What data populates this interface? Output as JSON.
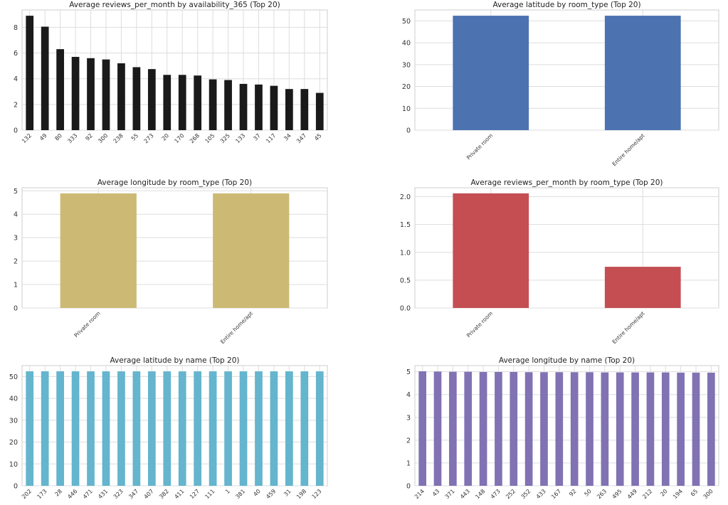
{
  "chart_data": [
    {
      "type": "bar",
      "title": "Average reviews_per_month by availability_365 (Top 20)",
      "color": "#1a1a1a",
      "categories": [
        "132",
        "49",
        "80",
        "333",
        "92",
        "300",
        "238",
        "55",
        "273",
        "20",
        "170",
        "268",
        "105",
        "325",
        "133",
        "37",
        "117",
        "34",
        "347",
        "45"
      ],
      "values": [
        8.9,
        8.05,
        6.3,
        5.7,
        5.6,
        5.5,
        5.2,
        4.9,
        4.75,
        4.3,
        4.3,
        4.25,
        3.95,
        3.9,
        3.6,
        3.55,
        3.45,
        3.2,
        3.2,
        2.9
      ],
      "ylim": [
        0,
        9.35
      ],
      "yticks": [
        0,
        2,
        4,
        6,
        8
      ],
      "grid": true
    },
    {
      "type": "bar",
      "title": "Average latitude by room_type (Top 20)",
      "color": "#4c72b0",
      "categories": [
        "Private room",
        "Entire home/apt"
      ],
      "values": [
        52.37,
        52.37
      ],
      "ylim": [
        0,
        55
      ],
      "yticks": [
        0,
        10,
        20,
        30,
        40,
        50
      ],
      "grid": true
    },
    {
      "type": "bar",
      "title": "Average longitude by room_type (Top 20)",
      "color": "#ccb974",
      "categories": [
        "Private room",
        "Entire home/apt"
      ],
      "values": [
        4.89,
        4.89
      ],
      "ylim": [
        0,
        5.13
      ],
      "yticks": [
        0,
        1,
        2,
        3,
        4,
        5
      ],
      "grid": true
    },
    {
      "type": "bar",
      "title": "Average reviews_per_month by room_type (Top 20)",
      "color": "#c44e52",
      "categories": [
        "Private room",
        "Entire home/apt"
      ],
      "values": [
        2.06,
        0.74
      ],
      "ylim": [
        0,
        2.16
      ],
      "yticks": [
        "0.0",
        "0.5",
        "1.0",
        "1.5",
        "2.0"
      ],
      "grid": true
    },
    {
      "type": "bar",
      "title": "Average latitude by name (Top 20)",
      "color": "#64b5cd",
      "categories": [
        "202",
        "173",
        "28",
        "446",
        "471",
        "431",
        "323",
        "347",
        "407",
        "382",
        "411",
        "127",
        "111",
        "1",
        "381",
        "40",
        "459",
        "31",
        "198",
        "123"
      ],
      "values": [
        52.38,
        52.38,
        52.38,
        52.38,
        52.37,
        52.37,
        52.37,
        52.37,
        52.37,
        52.37,
        52.37,
        52.37,
        52.37,
        52.37,
        52.37,
        52.37,
        52.37,
        52.37,
        52.37,
        52.37
      ],
      "ylim": [
        0,
        55
      ],
      "yticks": [
        0,
        10,
        20,
        30,
        40,
        50
      ],
      "grid": true
    },
    {
      "type": "bar",
      "title": "Average longitude by name (Top 20)",
      "color": "#8172b3",
      "categories": [
        "214",
        "43",
        "371",
        "443",
        "148",
        "473",
        "252",
        "352",
        "433",
        "167",
        "92",
        "50",
        "263",
        "495",
        "449",
        "212",
        "20",
        "194",
        "65",
        "300"
      ],
      "values": [
        5.02,
        5.01,
        5.0,
        5.0,
        4.99,
        4.99,
        4.99,
        4.98,
        4.98,
        4.98,
        4.98,
        4.98,
        4.97,
        4.97,
        4.97,
        4.97,
        4.97,
        4.96,
        4.96,
        4.96
      ],
      "ylim": [
        0,
        5.27
      ],
      "yticks": [
        0,
        1,
        2,
        3,
        4,
        5
      ],
      "grid": true
    }
  ]
}
